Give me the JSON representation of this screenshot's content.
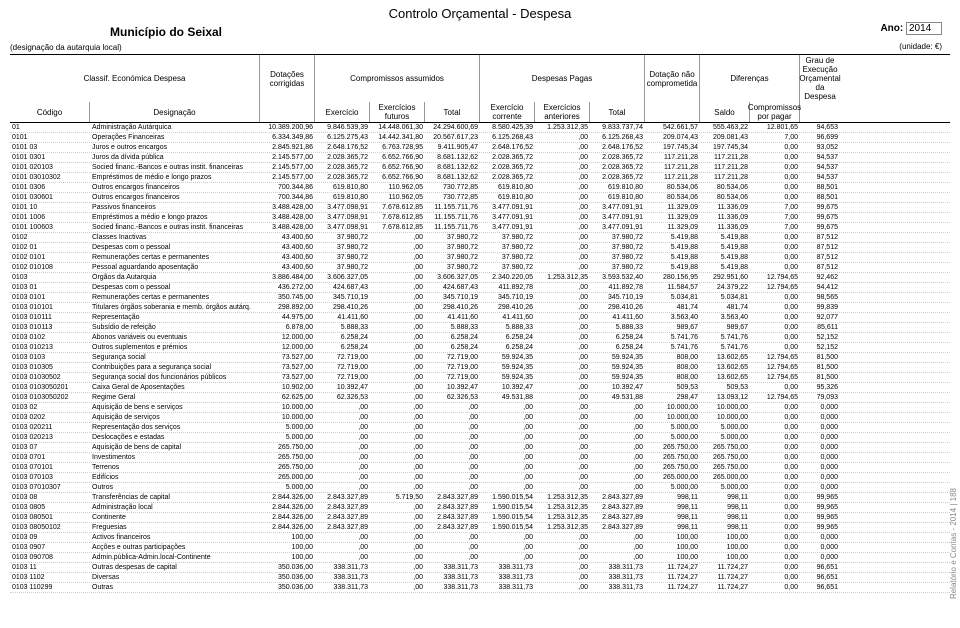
{
  "title": "Controlo Orçamental - Despesa",
  "municipio": "Município do Seixal",
  "ano_label": "Ano:",
  "ano_value": "2014",
  "designacao_local": "(designação da autarquia local)",
  "unidade": "(unidade: €)",
  "side_text": "Relatório e Contas - 2014 | 188",
  "h": {
    "classif": "Classif. Económica Despesa",
    "codigo": "Código",
    "desig": "Designação",
    "dotacoes": "Dotações corrigidas",
    "comp_ass": "Compromissos assumidos",
    "exerc": "Exercício",
    "exerc_fut": "Exercícios futuros",
    "total": "Total",
    "desp_pagas": "Despesas Pagas",
    "exerc_corr": "Exercício corrente",
    "exerc_ant": "Exercícios anteriores",
    "dot_nao": "Dotação não comprometida",
    "diferencas": "Diferenças",
    "saldo": "Saldo",
    "comp_pagar": "Compromissos por pagar",
    "grau": "Grau de Execução Orçamental da Despesa"
  },
  "rows": [
    {
      "cod": "01",
      "des": "Administração Autárquica",
      "dot": "10.389.200,96",
      "e": "9.846.539,39",
      "ef": "14.448.061,30",
      "t1": "24.294.600,69",
      "ec": "8.580.425,39",
      "ea": "1.253.312,35",
      "t2": "9.833.737,74",
      "dn": "542.661,57",
      "s": "555.463,22",
      "cp": "12.801,65",
      "g": "94,653"
    },
    {
      "cod": "0101",
      "des": "Operações Financeiras",
      "dot": "6.334.349,86",
      "e": "6.125.275,43",
      "ef": "14.442.341,80",
      "t1": "20.567.617,23",
      "ec": "6.125.268,43",
      "ea": ",00",
      "t2": "6.125.268,43",
      "dn": "209.074,43",
      "s": "209.081,43",
      "cp": "7,00",
      "g": "96,699"
    },
    {
      "cod": "0101  03",
      "des": "Juros e outros encargos",
      "dot": "2.845.921,86",
      "e": "2.648.176,52",
      "ef": "6.763.728,95",
      "t1": "9.411.905,47",
      "ec": "2.648.176,52",
      "ea": ",00",
      "t2": "2.648.176,52",
      "dn": "197.745,34",
      "s": "197.745,34",
      "cp": "0,00",
      "g": "93,052"
    },
    {
      "cod": "0101  0301",
      "des": "Juros da dívida pública",
      "dot": "2.145.577,00",
      "e": "2.028.365,72",
      "ef": "6.652.766,90",
      "t1": "8.681.132,62",
      "ec": "2.028.365,72",
      "ea": ",00",
      "t2": "2.028.365,72",
      "dn": "117.211,28",
      "s": "117.211,28",
      "cp": "0,00",
      "g": "94,537"
    },
    {
      "cod": "0101  020103",
      "des": "Socied financ.-Bancos e outras instit. financeiras",
      "dot": "2.145.577,00",
      "e": "2.028.365,72",
      "ef": "6.652.766,90",
      "t1": "8.681.132,62",
      "ec": "2.028.365,72",
      "ea": ",00",
      "t2": "2.028.365,72",
      "dn": "117.211,28",
      "s": "117.211,28",
      "cp": "0,00",
      "g": "94,537"
    },
    {
      "cod": "0101  03010302",
      "des": "Empréstimos de médio e longo prazos",
      "dot": "2.145.577,00",
      "e": "2.028.365,72",
      "ef": "6.652.766,90",
      "t1": "8.681.132,62",
      "ec": "2.028.365,72",
      "ea": ",00",
      "t2": "2.028.365,72",
      "dn": "117.211,28",
      "s": "117.211,28",
      "cp": "0,00",
      "g": "94,537"
    },
    {
      "cod": "0101  0306",
      "des": "Outros encargos financeiros",
      "dot": "700.344,86",
      "e": "619.810,80",
      "ef": "110.962,05",
      "t1": "730.772,85",
      "ec": "619.810,80",
      "ea": ",00",
      "t2": "619.810,80",
      "dn": "80.534,06",
      "s": "80.534,06",
      "cp": "0,00",
      "g": "88,501"
    },
    {
      "cod": "0101  030601",
      "des": "Outros encargos financeiros",
      "dot": "700.344,86",
      "e": "619.810,80",
      "ef": "110.962,05",
      "t1": "730.772,85",
      "ec": "619.810,80",
      "ea": ",00",
      "t2": "619.810,80",
      "dn": "80.534,06",
      "s": "80.534,06",
      "cp": "0,00",
      "g": "88,501"
    },
    {
      "cod": "0101  10",
      "des": "Passivos financeiros",
      "dot": "3.488.428,00",
      "e": "3.477.098,91",
      "ef": "7.678.612,85",
      "t1": "11.155.711,76",
      "ec": "3.477.091,91",
      "ea": ",00",
      "t2": "3.477.091,91",
      "dn": "11.329,09",
      "s": "11.336,09",
      "cp": "7,00",
      "g": "99,675"
    },
    {
      "cod": "0101  1006",
      "des": "Empréstimos a médio e longo prazos",
      "dot": "3.488.428,00",
      "e": "3.477.098,91",
      "ef": "7.678.612,85",
      "t1": "11.155.711,76",
      "ec": "3.477.091,91",
      "ea": ",00",
      "t2": "3.477.091,91",
      "dn": "11.329,09",
      "s": "11.336,09",
      "cp": "7,00",
      "g": "99,675"
    },
    {
      "cod": "0101  100603",
      "des": "Socied financ.-Bancos e outras instit. financeiras",
      "dot": "3.488.428,00",
      "e": "3.477.098,91",
      "ef": "7.678.612,85",
      "t1": "11.155.711,76",
      "ec": "3.477.091,91",
      "ea": ",00",
      "t2": "3.477.091,91",
      "dn": "11.329,09",
      "s": "11.336,09",
      "cp": "7,00",
      "g": "99,675"
    },
    {
      "cod": "0102",
      "des": "Classes Inactivas",
      "dot": "43.400,60",
      "e": "37.980,72",
      "ef": ",00",
      "t1": "37.980,72",
      "ec": "37.980,72",
      "ea": ",00",
      "t2": "37.980,72",
      "dn": "5.419,88",
      "s": "5.419,88",
      "cp": "0,00",
      "g": "87,512"
    },
    {
      "cod": "0102  01",
      "des": "Despesas com o pessoal",
      "dot": "43.400,60",
      "e": "37.980,72",
      "ef": ",00",
      "t1": "37.980,72",
      "ec": "37.980,72",
      "ea": ",00",
      "t2": "37.980,72",
      "dn": "5.419,88",
      "s": "5.419,88",
      "cp": "0,00",
      "g": "87,512"
    },
    {
      "cod": "0102  0101",
      "des": "Remunerações certas e permanentes",
      "dot": "43.400,60",
      "e": "37.980,72",
      "ef": ",00",
      "t1": "37.980,72",
      "ec": "37.980,72",
      "ea": ",00",
      "t2": "37.980,72",
      "dn": "5.419,88",
      "s": "5.419,88",
      "cp": "0,00",
      "g": "87,512"
    },
    {
      "cod": "0102  010108",
      "des": "Pessoal aguardando aposentação",
      "dot": "43.400,60",
      "e": "37.980,72",
      "ef": ",00",
      "t1": "37.980,72",
      "ec": "37.980,72",
      "ea": ",00",
      "t2": "37.980,72",
      "dn": "5.419,88",
      "s": "5.419,88",
      "cp": "0,00",
      "g": "87,512"
    },
    {
      "cod": "0103",
      "des": "Órgãos da Autarquia",
      "dot": "3.886.484,00",
      "e": "3.606.327,05",
      "ef": ",00",
      "t1": "3.606.327,05",
      "ec": "2.340.220,05",
      "ea": "1.253.312,35",
      "t2": "3.593.532,40",
      "dn": "280.156,95",
      "s": "292.951,60",
      "cp": "12.794,65",
      "g": "92,462"
    },
    {
      "cod": "0103  01",
      "des": "Despesas com o pessoal",
      "dot": "436.272,00",
      "e": "424.687,43",
      "ef": ",00",
      "t1": "424.687,43",
      "ec": "411.892,78",
      "ea": ",00",
      "t2": "411.892,78",
      "dn": "11.584,57",
      "s": "24.379,22",
      "cp": "12.794,65",
      "g": "94,412"
    },
    {
      "cod": "0103  0101",
      "des": "Remunerações certas e permanentes",
      "dot": "350.745,00",
      "e": "345.710,19",
      "ef": ",00",
      "t1": "345.710,19",
      "ec": "345.710,19",
      "ea": ",00",
      "t2": "345.710,19",
      "dn": "5.034,81",
      "s": "5.034,81",
      "cp": "0,00",
      "g": "98,565"
    },
    {
      "cod": "0103  010101",
      "des": "Titulares órgãos soberania e memb. órgãos autárq.",
      "dot": "298.892,00",
      "e": "298.410,26",
      "ef": ",00",
      "t1": "298.410,26",
      "ec": "298.410,26",
      "ea": ",00",
      "t2": "298.410,26",
      "dn": "481,74",
      "s": "481,74",
      "cp": "0,00",
      "g": "99,839"
    },
    {
      "cod": "0103  010111",
      "des": "Representação",
      "dot": "44.975,00",
      "e": "41.411,60",
      "ef": ",00",
      "t1": "41.411,60",
      "ec": "41.411,60",
      "ea": ",00",
      "t2": "41.411,60",
      "dn": "3.563,40",
      "s": "3.563,40",
      "cp": "0,00",
      "g": "92,077"
    },
    {
      "cod": "0103  010113",
      "des": "Subsídio de refeição",
      "dot": "6.878,00",
      "e": "5.888,33",
      "ef": ",00",
      "t1": "5.888,33",
      "ec": "5.888,33",
      "ea": ",00",
      "t2": "5.888,33",
      "dn": "989,67",
      "s": "989,67",
      "cp": "0,00",
      "g": "85,611"
    },
    {
      "cod": "0103  0102",
      "des": "Abonos variáveis ou eventuais",
      "dot": "12.000,00",
      "e": "6.258,24",
      "ef": ",00",
      "t1": "6.258,24",
      "ec": "6.258,24",
      "ea": ",00",
      "t2": "6.258,24",
      "dn": "5.741,76",
      "s": "5.741,76",
      "cp": "0,00",
      "g": "52,152"
    },
    {
      "cod": "0103  010213",
      "des": "Outros suplementos e prémios",
      "dot": "12.000,00",
      "e": "6.258,24",
      "ef": ",00",
      "t1": "6.258,24",
      "ec": "6.258,24",
      "ea": ",00",
      "t2": "6.258,24",
      "dn": "5.741,76",
      "s": "5.741,76",
      "cp": "0,00",
      "g": "52,152"
    },
    {
      "cod": "0103  0103",
      "des": "Segurança social",
      "dot": "73.527,00",
      "e": "72.719,00",
      "ef": ",00",
      "t1": "72.719,00",
      "ec": "59.924,35",
      "ea": ",00",
      "t2": "59.924,35",
      "dn": "808,00",
      "s": "13.602,65",
      "cp": "12.794,65",
      "g": "81,500"
    },
    {
      "cod": "0103  010305",
      "des": "Contribuições para a segurança social",
      "dot": "73.527,00",
      "e": "72.719,00",
      "ef": ",00",
      "t1": "72.719,00",
      "ec": "59.924,35",
      "ea": ",00",
      "t2": "59.924,35",
      "dn": "808,00",
      "s": "13.602,65",
      "cp": "12.794,65",
      "g": "81,500"
    },
    {
      "cod": "0103  01030502",
      "des": "Segurança social dos funcionários públicos",
      "dot": "73.527,00",
      "e": "72.719,00",
      "ef": ",00",
      "t1": "72.719,00",
      "ec": "59.924,35",
      "ea": ",00",
      "t2": "59.924,35",
      "dn": "808,00",
      "s": "13.602,65",
      "cp": "12.794,65",
      "g": "81,500"
    },
    {
      "cod": "0103  0103050201",
      "des": "Caixa Geral de Aposentações",
      "dot": "10.902,00",
      "e": "10.392,47",
      "ef": ",00",
      "t1": "10.392,47",
      "ec": "10.392,47",
      "ea": ",00",
      "t2": "10.392,47",
      "dn": "509,53",
      "s": "509,53",
      "cp": "0,00",
      "g": "95,326"
    },
    {
      "cod": "0103  0103050202",
      "des": "Regime Geral",
      "dot": "62.625,00",
      "e": "62.326,53",
      "ef": ",00",
      "t1": "62.326,53",
      "ec": "49.531,88",
      "ea": ",00",
      "t2": "49.531,88",
      "dn": "298,47",
      "s": "13.093,12",
      "cp": "12.794,65",
      "g": "79,093"
    },
    {
      "cod": "0103  02",
      "des": "Aquisição de bens e serviços",
      "dot": "10.000,00",
      "e": ",00",
      "ef": ",00",
      "t1": ",00",
      "ec": ",00",
      "ea": ",00",
      "t2": ",00",
      "dn": "10.000,00",
      "s": "10.000,00",
      "cp": "0,00",
      "g": "0,000"
    },
    {
      "cod": "0103  0202",
      "des": "Aquisição de serviços",
      "dot": "10.000,00",
      "e": ",00",
      "ef": ",00",
      "t1": ",00",
      "ec": ",00",
      "ea": ",00",
      "t2": ",00",
      "dn": "10.000,00",
      "s": "10.000,00",
      "cp": "0,00",
      "g": "0,000"
    },
    {
      "cod": "0103  020211",
      "des": "Representação dos serviços",
      "dot": "5.000,00",
      "e": ",00",
      "ef": ",00",
      "t1": ",00",
      "ec": ",00",
      "ea": ",00",
      "t2": ",00",
      "dn": "5.000,00",
      "s": "5.000,00",
      "cp": "0,00",
      "g": "0,000"
    },
    {
      "cod": "0103  020213",
      "des": "Deslocações e estadas",
      "dot": "5.000,00",
      "e": ",00",
      "ef": ",00",
      "t1": ",00",
      "ec": ",00",
      "ea": ",00",
      "t2": ",00",
      "dn": "5.000,00",
      "s": "5.000,00",
      "cp": "0,00",
      "g": "0,000"
    },
    {
      "cod": "0103  07",
      "des": "Aquisição de bens de capital",
      "dot": "265.750,00",
      "e": ",00",
      "ef": ",00",
      "t1": ",00",
      "ec": ",00",
      "ea": ",00",
      "t2": ",00",
      "dn": "265.750,00",
      "s": "265.750,00",
      "cp": "0,00",
      "g": "0,000"
    },
    {
      "cod": "0103  0701",
      "des": "Investimentos",
      "dot": "265.750,00",
      "e": ",00",
      "ef": ",00",
      "t1": ",00",
      "ec": ",00",
      "ea": ",00",
      "t2": ",00",
      "dn": "265.750,00",
      "s": "265.750,00",
      "cp": "0,00",
      "g": "0,000"
    },
    {
      "cod": "0103  070101",
      "des": "Terrenos",
      "dot": "265.750,00",
      "e": ",00",
      "ef": ",00",
      "t1": ",00",
      "ec": ",00",
      "ea": ",00",
      "t2": ",00",
      "dn": "265.750,00",
      "s": "265.750,00",
      "cp": "0,00",
      "g": "0,000"
    },
    {
      "cod": "0103  070103",
      "des": "Edifícios",
      "dot": "265.000,00",
      "e": ",00",
      "ef": ",00",
      "t1": ",00",
      "ec": ",00",
      "ea": ",00",
      "t2": ",00",
      "dn": "265.000,00",
      "s": "265.000,00",
      "cp": "0,00",
      "g": "0,000"
    },
    {
      "cod": "0103  07010307",
      "des": "Outros",
      "dot": "5.000,00",
      "e": ",00",
      "ef": ",00",
      "t1": ",00",
      "ec": ",00",
      "ea": ",00",
      "t2": ",00",
      "dn": "5.000,00",
      "s": "5.000,00",
      "cp": "0,00",
      "g": "0,000"
    },
    {
      "cod": "0103  08",
      "des": "Transferências de capital",
      "dot": "2.844.326,00",
      "e": "2.843.327,89",
      "ef": "5.719,50",
      "t1": "2.843.327,89",
      "ec": "1.590.015,54",
      "ea": "1.253.312,35",
      "t2": "2.843.327,89",
      "dn": "998,11",
      "s": "998,11",
      "cp": "0,00",
      "g": "99,965"
    },
    {
      "cod": "0103  0805",
      "des": "Administração local",
      "dot": "2.844.326,00",
      "e": "2.843.327,89",
      "ef": ",00",
      "t1": "2.843.327,89",
      "ec": "1.590.015,54",
      "ea": "1.253.312,35",
      "t2": "2.843.327,89",
      "dn": "998,11",
      "s": "998,11",
      "cp": "0,00",
      "g": "99,965"
    },
    {
      "cod": "0103  080501",
      "des": "Continente",
      "dot": "2.844.326,00",
      "e": "2.843.327,89",
      "ef": ",00",
      "t1": "2.843.327,89",
      "ec": "1.590.015,54",
      "ea": "1.253.312,35",
      "t2": "2.843.327,89",
      "dn": "998,11",
      "s": "998,11",
      "cp": "0,00",
      "g": "99,965"
    },
    {
      "cod": "0103  08050102",
      "des": "Freguesias",
      "dot": "2.844.326,00",
      "e": "2.843.327,89",
      "ef": ",00",
      "t1": "2.843.327,89",
      "ec": "1.590.015,54",
      "ea": "1.253.312,35",
      "t2": "2.843.327,89",
      "dn": "998,11",
      "s": "998,11",
      "cp": "0,00",
      "g": "99,965"
    },
    {
      "cod": "0103  09",
      "des": "Activos financeiros",
      "dot": "100,00",
      "e": ",00",
      "ef": ",00",
      "t1": ",00",
      "ec": ",00",
      "ea": ",00",
      "t2": ",00",
      "dn": "100,00",
      "s": "100,00",
      "cp": "0,00",
      "g": "0,000"
    },
    {
      "cod": "0103  0907",
      "des": "Acções e outras participações",
      "dot": "100,00",
      "e": ",00",
      "ef": ",00",
      "t1": ",00",
      "ec": ",00",
      "ea": ",00",
      "t2": ",00",
      "dn": "100,00",
      "s": "100,00",
      "cp": "0,00",
      "g": "0,000"
    },
    {
      "cod": "0103  090708",
      "des": "Admin.pública-Admin.local-Continente",
      "dot": "100,00",
      "e": ",00",
      "ef": ",00",
      "t1": ",00",
      "ec": ",00",
      "ea": ",00",
      "t2": ",00",
      "dn": "100,00",
      "s": "100,00",
      "cp": "0,00",
      "g": "0,000"
    },
    {
      "cod": "0103  11",
      "des": "Outras despesas de capital",
      "dot": "350.036,00",
      "e": "338.311,73",
      "ef": ",00",
      "t1": "338.311,73",
      "ec": "338.311,73",
      "ea": ",00",
      "t2": "338.311,73",
      "dn": "11.724,27",
      "s": "11.724,27",
      "cp": "0,00",
      "g": "96,651"
    },
    {
      "cod": "0103  1102",
      "des": "Diversas",
      "dot": "350.036,00",
      "e": "338.311,73",
      "ef": ",00",
      "t1": "338.311,73",
      "ec": "338.311,73",
      "ea": ",00",
      "t2": "338.311,73",
      "dn": "11.724,27",
      "s": "11.724,27",
      "cp": "0,00",
      "g": "96,651"
    },
    {
      "cod": "0103  110299",
      "des": "Outras",
      "dot": "350.036,00",
      "e": "338.311,73",
      "ef": ",00",
      "t1": "338.311,73",
      "ec": "338.311,73",
      "ea": ",00",
      "t2": "338.311,73",
      "dn": "11.724,27",
      "s": "11.724,27",
      "cp": "0,00",
      "g": "96,651"
    }
  ]
}
